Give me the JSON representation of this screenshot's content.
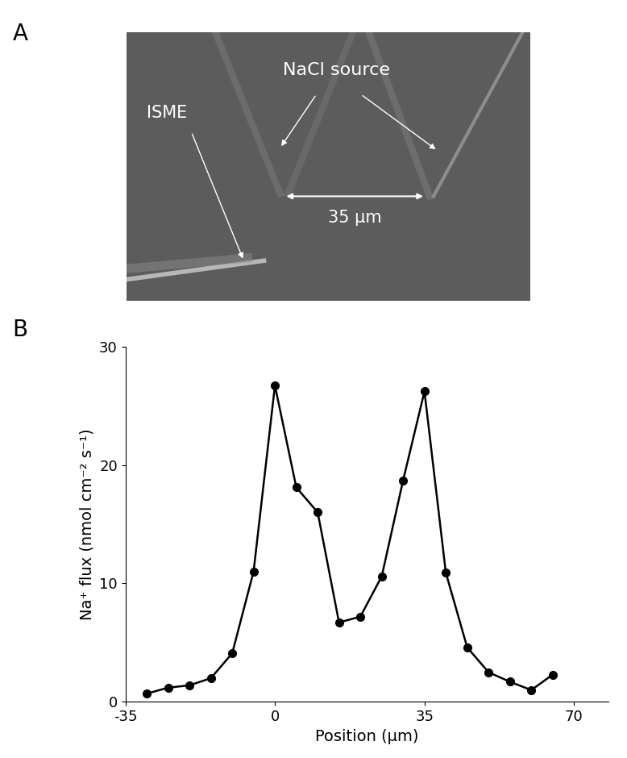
{
  "panel_labels": [
    "A",
    "B"
  ],
  "image_panel": {
    "annotations": {
      "source": "NaCl source",
      "electrode": "ISME",
      "distance": "35 μm"
    }
  },
  "chart_data": {
    "type": "line",
    "x_label": "Position (μm)",
    "y_label": "Na⁺ flux (nmol cm⁻² s⁻¹)",
    "x": [
      -30,
      -25,
      -20,
      -15,
      -10,
      -5,
      0,
      5,
      10,
      15,
      20,
      25,
      30,
      35,
      40,
      45,
      50,
      55,
      60,
      65
    ],
    "values": [
      0.7,
      1.2,
      1.4,
      2.0,
      4.1,
      11.0,
      26.7,
      18.1,
      16.0,
      6.7,
      7.2,
      10.6,
      18.7,
      26.2,
      10.9,
      4.6,
      2.5,
      1.7,
      1.0,
      2.3
    ],
    "color": "#000000",
    "marker": "o",
    "line_style": "solid",
    "xlim": [
      -35,
      78
    ],
    "xticks": [
      -35,
      0,
      35,
      70
    ],
    "ylim": [
      0,
      30
    ],
    "yticks": [
      0,
      10,
      20,
      30
    ],
    "grid": false
  }
}
